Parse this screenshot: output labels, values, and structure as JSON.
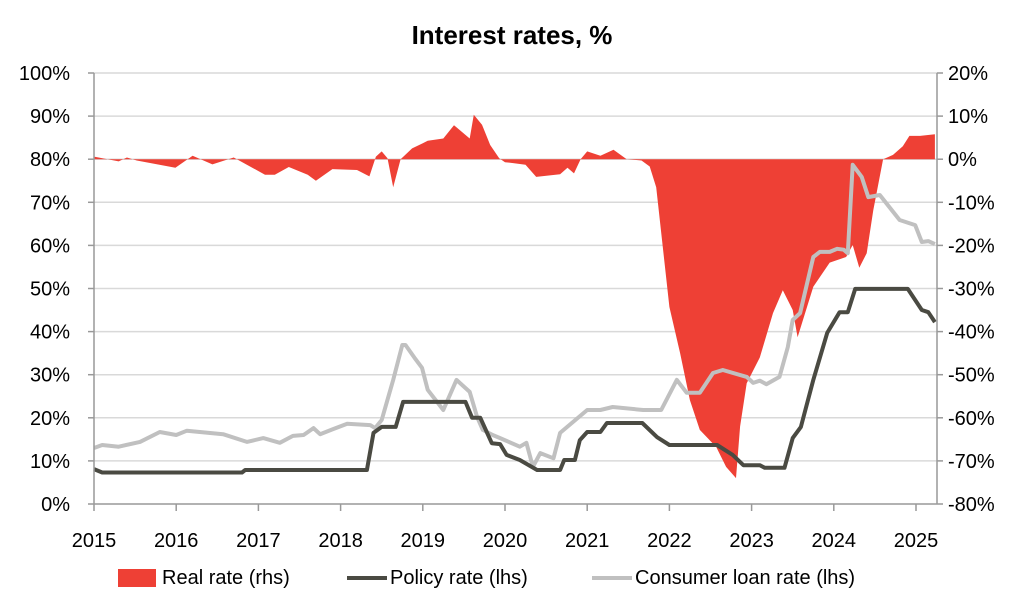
{
  "chart_data": {
    "type": "area+line",
    "title": "Interest rates, %",
    "x_ticks": [
      "2015",
      "2016",
      "2017",
      "2018",
      "2019",
      "2020",
      "2021",
      "2022",
      "2023",
      "2024",
      "2025"
    ],
    "xlim": [
      2015,
      2025.25
    ],
    "y_left": {
      "ylim": [
        0,
        100
      ],
      "ticks": [
        "0%",
        "10%",
        "20%",
        "30%",
        "40%",
        "50%",
        "60%",
        "70%",
        "80%",
        "90%",
        "100%"
      ]
    },
    "y_right": {
      "ylim": [
        -80,
        20
      ],
      "ticks": [
        "-80%",
        "-70%",
        "-60%",
        "-50%",
        "-40%",
        "-30%",
        "-20%",
        "-10%",
        "0%",
        "10%",
        "20%"
      ]
    },
    "grid": true,
    "legend_position": "bottom",
    "colors": {
      "real": "#ee4035",
      "policy": "#4a4a42",
      "consumer": "#c0c0c0"
    },
    "series": [
      {
        "name": "Real rate (rhs)",
        "axis": "right",
        "kind": "area",
        "x": [
          2015.0,
          2015.3,
          2015.4,
          2015.52,
          2015.99,
          2016.2,
          2016.44,
          2016.7,
          2017.08,
          2017.2,
          2017.37,
          2017.6,
          2017.7,
          2017.9,
          2018.2,
          2018.35,
          2018.43,
          2018.5,
          2018.57,
          2018.64,
          2018.73,
          2018.87,
          2019.0,
          2019.06,
          2019.25,
          2019.38,
          2019.57,
          2019.62,
          2019.72,
          2019.82,
          2019.93,
          2020.0,
          2020.1,
          2020.25,
          2020.38,
          2020.67,
          2020.76,
          2020.84,
          2020.92,
          2021.0,
          2021.16,
          2021.32,
          2021.48,
          2021.66,
          2021.76,
          2021.84,
          2021.92,
          2022.0,
          2022.13,
          2022.25,
          2022.37,
          2022.57,
          2022.69,
          2022.81,
          2022.86,
          2022.94,
          2023.1,
          2023.26,
          2023.38,
          2023.5,
          2023.56,
          2023.75,
          2023.95,
          2024.15,
          2024.23,
          2024.31,
          2024.4,
          2024.48,
          2024.6,
          2024.72,
          2024.84,
          2024.92,
          2025.05,
          2025.23
        ],
        "values": [
          0.6,
          -0.5,
          0.4,
          -0.3,
          -2,
          0.8,
          -1.2,
          0.4,
          -3.6,
          -3.6,
          -1.8,
          -3.6,
          -5,
          -2.3,
          -2.5,
          -4,
          0.6,
          1.8,
          0.2,
          -6.5,
          0,
          2.5,
          3.7,
          4.3,
          4.8,
          7.9,
          4.8,
          10.3,
          8,
          3.3,
          0.2,
          -0.7,
          -0.9,
          -1.3,
          -4.1,
          -3.5,
          -2,
          -3.3,
          0,
          1.8,
          0.8,
          2.2,
          0,
          -0.3,
          -1.7,
          -6.5,
          -20.4,
          -34.3,
          -45,
          -55.9,
          -62.8,
          -66.8,
          -71.4,
          -74,
          -62,
          -52,
          -46,
          -35.7,
          -30.4,
          -35,
          -41.3,
          -29.6,
          -24,
          -22.7,
          -19.9,
          -25.2,
          -21.8,
          -11.8,
          0,
          1,
          3,
          5.4,
          5.4,
          5.8
        ]
      },
      {
        "name": "Policy rate (lhs)",
        "axis": "left",
        "kind": "line",
        "x": [
          2015.0,
          2015.1,
          2016.8,
          2016.84,
          2018.32,
          2018.4,
          2018.5,
          2018.67,
          2018.76,
          2019.52,
          2019.6,
          2019.7,
          2019.84,
          2019.94,
          2020.02,
          2020.18,
          2020.39,
          2020.67,
          2020.72,
          2020.85,
          2020.91,
          2021.0,
          2021.16,
          2021.24,
          2021.67,
          2021.85,
          2022.0,
          2022.58,
          2022.77,
          2022.9,
          2023.1,
          2023.16,
          2023.4,
          2023.5,
          2023.6,
          2023.75,
          2023.92,
          2024.07,
          2024.17,
          2024.26,
          2024.9,
          2025.07,
          2025.15,
          2025.23
        ],
        "values": [
          8.1,
          7.3,
          7.3,
          7.9,
          7.9,
          16.5,
          17.9,
          17.9,
          23.7,
          23.7,
          20,
          20,
          14.1,
          13.9,
          11.4,
          10.2,
          7.9,
          7.9,
          10.2,
          10.2,
          14.8,
          16.7,
          16.7,
          18.8,
          18.8,
          15.5,
          13.7,
          13.7,
          11.4,
          9,
          9,
          8.4,
          8.4,
          15.3,
          17.9,
          28.8,
          39.7,
          44.5,
          44.5,
          49.9,
          49.9,
          45,
          44.5,
          42.2
        ]
      },
      {
        "name": "Consumer loan rate (lhs)",
        "axis": "left",
        "kind": "line",
        "x": [
          2015.0,
          2015.1,
          2015.3,
          2015.56,
          2015.8,
          2016.0,
          2016.13,
          2016.57,
          2016.86,
          2017.06,
          2017.26,
          2017.42,
          2017.55,
          2017.67,
          2017.75,
          2017.9,
          2018.08,
          2018.36,
          2018.42,
          2018.5,
          2018.64,
          2018.75,
          2018.79,
          2018.9,
          2018.99,
          2019.06,
          2019.25,
          2019.41,
          2019.57,
          2019.66,
          2019.73,
          2019.85,
          2019.94,
          2020.18,
          2020.26,
          2020.34,
          2020.43,
          2020.59,
          2020.67,
          2021.0,
          2021.16,
          2021.31,
          2021.68,
          2021.9,
          2022.09,
          2022.21,
          2022.37,
          2022.53,
          2022.65,
          2022.94,
          2023.02,
          2023.1,
          2023.18,
          2023.34,
          2023.44,
          2023.5,
          2023.59,
          2023.75,
          2023.83,
          2023.95,
          2024.04,
          2024.12,
          2024.17,
          2024.23,
          2024.34,
          2024.42,
          2024.56,
          2024.8,
          2024.99,
          2025.07,
          2025.15,
          2025.23
        ],
        "values": [
          13,
          13.7,
          13.3,
          14.4,
          16.7,
          16,
          17,
          16.2,
          14.4,
          15.3,
          14.2,
          15.8,
          16,
          17.6,
          16.2,
          17.3,
          18.6,
          18.3,
          17.6,
          19.5,
          28.8,
          36.9,
          36.9,
          33.9,
          31.6,
          26.5,
          21.8,
          28.8,
          26,
          20.2,
          17.2,
          16,
          15.3,
          13.3,
          14.2,
          8.6,
          11.8,
          10.6,
          16.5,
          21.8,
          21.8,
          22.5,
          21.8,
          21.8,
          28.8,
          25.8,
          25.8,
          30.4,
          31.1,
          29.5,
          28.1,
          28.6,
          27.8,
          29.5,
          36.4,
          42.7,
          44.3,
          57.3,
          58.5,
          58.5,
          59.2,
          59,
          58.2,
          78.7,
          75.9,
          71.2,
          71.7,
          65.9,
          64.7,
          60.8,
          61,
          60.3
        ]
      }
    ]
  },
  "legend": {
    "real": "Real rate (rhs)",
    "policy": "Policy rate (lhs)",
    "consumer": "Consumer loan rate (lhs)"
  }
}
